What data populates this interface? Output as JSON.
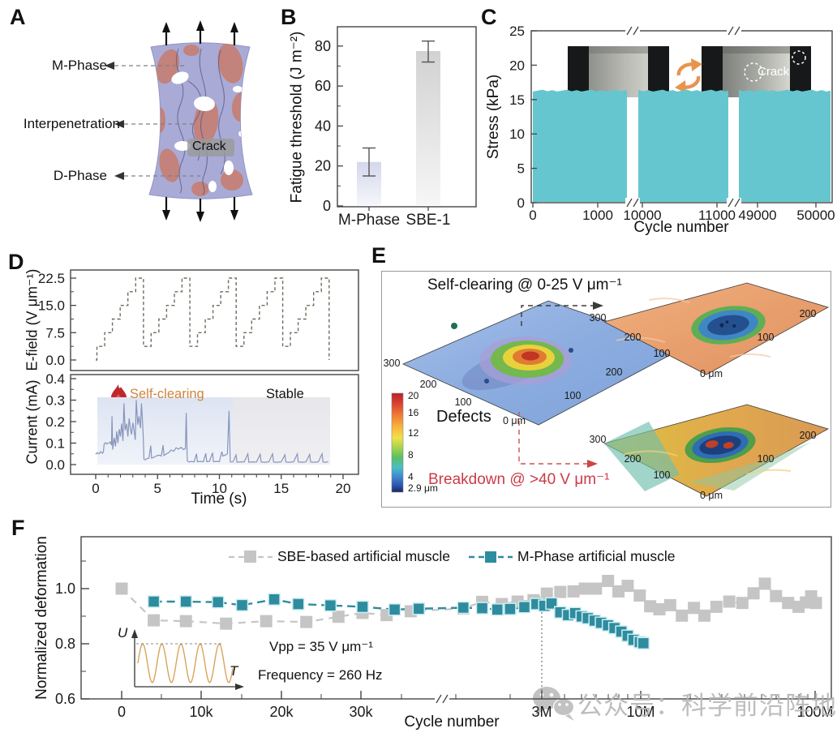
{
  "panels": {
    "a": "A",
    "b": "B",
    "c": "C",
    "d": "D",
    "e": "E",
    "f": "F"
  },
  "panel_a": {
    "m_phase": "M-Phase",
    "interpenetration": "Interpenetration",
    "d_phase": "D-Phase",
    "crack": "Crack",
    "colors": {
      "matrix": "#a9abd6",
      "domains": "#c58077"
    }
  },
  "panel_c": {
    "crack_label": "Crack"
  },
  "panel_d": {
    "self_clearing": "Self-clearing",
    "stable": "Stable"
  },
  "panel_e": {
    "title": "Self-clearing @ 0-25 V μm⁻¹",
    "defects_label": "Defects",
    "breakdown": "Breakdown @ >40 V μm⁻¹",
    "breakdown_color": "#cc3b47",
    "colorbar_ticks": [
      "20",
      "16",
      "12",
      "8",
      "4",
      "2.9 μm"
    ],
    "plots": [
      {
        "edge_labels": [
          "300",
          "200",
          "100",
          "0 μm",
          "100",
          "200"
        ]
      },
      {
        "edge_labels": [
          "300",
          "200",
          "100",
          "0 μm",
          "100",
          "200"
        ]
      },
      {
        "edge_labels": [
          "300",
          "200",
          "100",
          "0 μm",
          "100",
          "200"
        ]
      }
    ]
  },
  "panel_f": {
    "vpp": "Vpp = 35 V μm⁻¹",
    "frequency": "Frequency = 260 Hz",
    "inset_y": "U",
    "inset_x": "T"
  },
  "watermark": {
    "icon": "wechat-icon",
    "text": "公众号：科学前沿阵地",
    "color": "#b6b6b6"
  },
  "chart_data": [
    {
      "panel": "B",
      "type": "bar",
      "ylabel": "Fatigue threshold (J m⁻²)",
      "categories": [
        "M-Phase",
        "SBE-1"
      ],
      "values": [
        22,
        77.5
      ],
      "error_low": [
        7,
        5.5
      ],
      "error_high": [
        7,
        5
      ],
      "yticks": [
        0,
        20,
        40,
        60,
        80
      ],
      "ylim": [
        0,
        90
      ],
      "bar_colors": [
        "#dcdfef",
        "#d8d8d8"
      ]
    },
    {
      "panel": "C",
      "type": "area",
      "ylabel": "Stress (kPa)",
      "xlabel": "Cycle number",
      "yticks": [
        0,
        5,
        10,
        15,
        20,
        25
      ],
      "ylim": [
        0,
        25
      ],
      "plateau_stress_kPa": 16.3,
      "x_tick_labels": [
        "0",
        "1000",
        "10000",
        "11000",
        "49000",
        "50000"
      ],
      "n_axis_breaks": 2,
      "fill_color": "#65c6cf"
    },
    {
      "panel": "D-top",
      "type": "line",
      "ylabel": "E-field (V μm⁻¹)",
      "ytick_labels": [
        "0.0",
        "7.5",
        "15.0",
        "22.5"
      ],
      "ytick_values": [
        0,
        7.5,
        15,
        22.5
      ],
      "points": [
        [
          0,
          0
        ],
        [
          0.1,
          0
        ],
        [
          0.1,
          3.75
        ],
        [
          0.73,
          3.75
        ],
        [
          0.73,
          7.5
        ],
        [
          1.35,
          7.5
        ],
        [
          1.35,
          11.25
        ],
        [
          1.98,
          11.25
        ],
        [
          1.98,
          15
        ],
        [
          2.6,
          15
        ],
        [
          2.6,
          18.75
        ],
        [
          3.23,
          18.75
        ],
        [
          3.23,
          22.5
        ],
        [
          3.86,
          22.5
        ],
        [
          3.86,
          3.75
        ],
        [
          4.48,
          3.75
        ],
        [
          4.48,
          7.5
        ],
        [
          5.11,
          7.5
        ],
        [
          5.11,
          11.25
        ],
        [
          5.73,
          11.25
        ],
        [
          5.73,
          15
        ],
        [
          6.36,
          15
        ],
        [
          6.36,
          18.75
        ],
        [
          6.98,
          18.75
        ],
        [
          6.98,
          22.5
        ],
        [
          7.61,
          22.5
        ],
        [
          7.61,
          3.75
        ],
        [
          8.23,
          3.75
        ],
        [
          8.23,
          7.5
        ],
        [
          8.86,
          7.5
        ],
        [
          8.86,
          11.25
        ],
        [
          9.48,
          11.25
        ],
        [
          9.48,
          15
        ],
        [
          10.11,
          15
        ],
        [
          10.11,
          18.75
        ],
        [
          10.73,
          18.75
        ],
        [
          10.73,
          22.5
        ],
        [
          11.36,
          22.5
        ],
        [
          11.36,
          3.75
        ],
        [
          11.99,
          3.75
        ],
        [
          11.99,
          7.5
        ],
        [
          12.61,
          7.5
        ],
        [
          12.61,
          11.25
        ],
        [
          13.24,
          11.25
        ],
        [
          13.24,
          15
        ],
        [
          13.86,
          15
        ],
        [
          13.86,
          18.75
        ],
        [
          14.49,
          18.75
        ],
        [
          14.49,
          22.5
        ],
        [
          15.12,
          22.5
        ],
        [
          15.12,
          3.75
        ],
        [
          15.74,
          3.75
        ],
        [
          15.74,
          7.5
        ],
        [
          16.37,
          7.5
        ],
        [
          16.37,
          11.25
        ],
        [
          16.99,
          11.25
        ],
        [
          16.99,
          15
        ],
        [
          17.62,
          15
        ],
        [
          17.62,
          18.75
        ],
        [
          18.24,
          18.75
        ],
        [
          18.24,
          22.5
        ],
        [
          18.87,
          22.5
        ],
        [
          18.87,
          0
        ]
      ]
    },
    {
      "panel": "D-bottom",
      "type": "line",
      "ylabel": "Current (mA)",
      "xlabel": "Time (s)",
      "ytick_labels": [
        "0.0",
        "0.1",
        "0.2",
        "0.3",
        "0.4"
      ],
      "ytick_values": [
        0,
        0.1,
        0.2,
        0.3,
        0.4
      ],
      "xticks": [
        0,
        5,
        10,
        15,
        20
      ],
      "annotations": [
        "Self-clearing",
        "Stable"
      ],
      "points": [
        [
          0,
          0.048
        ],
        [
          0.1,
          0.055
        ],
        [
          0.25,
          0.05
        ],
        [
          0.4,
          0.06
        ],
        [
          0.55,
          0.052
        ],
        [
          0.62,
          0.06
        ],
        [
          0.68,
          0.095
        ],
        [
          0.8,
          0.102
        ],
        [
          0.92,
          0.096
        ],
        [
          1.05,
          0.1
        ],
        [
          1.18,
          0.105
        ],
        [
          1.28,
          0.09
        ],
        [
          1.32,
          0.225
        ],
        [
          1.38,
          0.07
        ],
        [
          1.5,
          0.125
        ],
        [
          1.6,
          0.085
        ],
        [
          1.7,
          0.155
        ],
        [
          1.8,
          0.1
        ],
        [
          1.9,
          0.165
        ],
        [
          2.0,
          0.13
        ],
        [
          2.1,
          0.19
        ],
        [
          2.2,
          0.11
        ],
        [
          2.28,
          0.285
        ],
        [
          2.38,
          0.16
        ],
        [
          2.5,
          0.19
        ],
        [
          2.6,
          0.13
        ],
        [
          2.7,
          0.215
        ],
        [
          2.8,
          0.17
        ],
        [
          2.9,
          0.14
        ],
        [
          3.0,
          0.195
        ],
        [
          3.1,
          0.16
        ],
        [
          3.2,
          0.115
        ],
        [
          3.28,
          0.3
        ],
        [
          3.4,
          0.185
        ],
        [
          3.5,
          0.225
        ],
        [
          3.62,
          0.17
        ],
        [
          3.7,
          0.285
        ],
        [
          3.78,
          0.21
        ],
        [
          3.84,
          0.13
        ],
        [
          3.9,
          0.025
        ],
        [
          4.0,
          0.022
        ],
        [
          4.15,
          0.028
        ],
        [
          4.3,
          0.03
        ],
        [
          4.45,
          0.088
        ],
        [
          4.52,
          0.03
        ],
        [
          4.7,
          0.034
        ],
        [
          4.9,
          0.04
        ],
        [
          5.1,
          0.044
        ],
        [
          5.3,
          0.04
        ],
        [
          5.45,
          0.09
        ],
        [
          5.52,
          0.042
        ],
        [
          5.7,
          0.05
        ],
        [
          5.9,
          0.055
        ],
        [
          6.1,
          0.068
        ],
        [
          6.3,
          0.062
        ],
        [
          6.5,
          0.078
        ],
        [
          6.7,
          0.072
        ],
        [
          6.9,
          0.08
        ],
        [
          7.1,
          0.07
        ],
        [
          7.25,
          0.075
        ],
        [
          7.32,
          0.24
        ],
        [
          7.4,
          0.018
        ],
        [
          7.55,
          0.012
        ],
        [
          7.75,
          0.015
        ],
        [
          7.95,
          0.012
        ],
        [
          8.15,
          0.05
        ],
        [
          8.22,
          0.013
        ],
        [
          8.45,
          0.015
        ],
        [
          8.7,
          0.013
        ],
        [
          8.9,
          0.052
        ],
        [
          8.98,
          0.014
        ],
        [
          9.2,
          0.015
        ],
        [
          9.45,
          0.055
        ],
        [
          9.52,
          0.013
        ],
        [
          9.75,
          0.015
        ],
        [
          10.0,
          0.014
        ],
        [
          10.2,
          0.06
        ],
        [
          10.28,
          0.04
        ],
        [
          10.5,
          0.045
        ],
        [
          10.65,
          0.05
        ],
        [
          10.78,
          0.25
        ],
        [
          10.88,
          0.012
        ],
        [
          11.1,
          0.013
        ],
        [
          11.35,
          0.045
        ],
        [
          11.42,
          0.011
        ],
        [
          11.7,
          0.013
        ],
        [
          12.0,
          0.012
        ],
        [
          12.3,
          0.05
        ],
        [
          12.38,
          0.011
        ],
        [
          12.7,
          0.013
        ],
        [
          13.0,
          0.012
        ],
        [
          13.3,
          0.048
        ],
        [
          13.38,
          0.012
        ],
        [
          13.7,
          0.011
        ],
        [
          14.0,
          0.013
        ],
        [
          14.3,
          0.05
        ],
        [
          14.38,
          0.012
        ],
        [
          14.7,
          0.011
        ],
        [
          15.0,
          0.013
        ],
        [
          15.3,
          0.046
        ],
        [
          15.38,
          0.012
        ],
        [
          15.7,
          0.011
        ],
        [
          16.0,
          0.013
        ],
        [
          16.3,
          0.05
        ],
        [
          16.38,
          0.012
        ],
        [
          16.7,
          0.011
        ],
        [
          17.0,
          0.013
        ],
        [
          17.3,
          0.047
        ],
        [
          17.38,
          0.012
        ],
        [
          17.7,
          0.011
        ],
        [
          18.0,
          0.013
        ],
        [
          18.3,
          0.05
        ],
        [
          18.38,
          0.012
        ],
        [
          18.6,
          0.011
        ],
        [
          18.8,
          0.014
        ]
      ]
    },
    {
      "panel": "F",
      "type": "scatter",
      "ylabel": "Normalized deformation",
      "xlabel": "Cycle number",
      "ytick_labels": [
        "0.6",
        "0.8",
        "1.0"
      ],
      "ytick_values": [
        0.6,
        0.8,
        1.0
      ],
      "xtick_labels": [
        "0",
        "10k",
        "20k",
        "30k",
        "3M",
        "10M",
        "100M"
      ],
      "series": [
        {
          "name": "SBE-based artificial muscle",
          "color": "#c5c5c5",
          "points": [
            [
              0,
              1.0
            ],
            [
              4000,
              0.885
            ],
            [
              8000,
              0.882
            ],
            [
              13000,
              0.873
            ],
            [
              18000,
              0.882
            ],
            [
              23000,
              0.879
            ],
            [
              27000,
              0.898
            ],
            [
              30000,
              0.912
            ],
            [
              33000,
              0.904
            ],
            [
              36000,
              0.918
            ],
            [
              1100000,
              0.928
            ],
            [
              1400000,
              0.952
            ],
            [
              1800000,
              0.944
            ],
            [
              2200000,
              0.953
            ],
            [
              2700000,
              0.958
            ],
            [
              3200000,
              0.982
            ],
            [
              3800000,
              0.988
            ],
            [
              4500000,
              0.99
            ],
            [
              5200000,
              1.0
            ],
            [
              6000000,
              1.0
            ],
            [
              7000000,
              1.028
            ],
            [
              8000000,
              0.99
            ],
            [
              9000000,
              1.01
            ],
            [
              10500000,
              0.975
            ],
            [
              12000000,
              0.936
            ],
            [
              13500000,
              0.925
            ],
            [
              15500000,
              0.94
            ],
            [
              18000000,
              0.902
            ],
            [
              21000000,
              0.93
            ],
            [
              24000000,
              0.902
            ],
            [
              28000000,
              0.934
            ],
            [
              33000000,
              0.953
            ],
            [
              39000000,
              0.948
            ],
            [
              45000000,
              0.983
            ],
            [
              52000000,
              1.018
            ],
            [
              60000000,
              0.973
            ],
            [
              70000000,
              0.948
            ],
            [
              80000000,
              0.934
            ],
            [
              88000000,
              0.95
            ],
            [
              94000000,
              0.972
            ],
            [
              100000000,
              0.948
            ]
          ]
        },
        {
          "name": "M-Phase artificial muscle",
          "color": "#2e8c9e",
          "points": [
            [
              4000,
              0.953
            ],
            [
              8000,
              0.953
            ],
            [
              12000,
              0.951
            ],
            [
              15000,
              0.94
            ],
            [
              19000,
              0.961
            ],
            [
              22000,
              0.944
            ],
            [
              26000,
              0.939
            ],
            [
              30000,
              0.934
            ],
            [
              34000,
              0.924
            ],
            [
              37000,
              0.927
            ],
            [
              1100000,
              0.931
            ],
            [
              1400000,
              0.929
            ],
            [
              1700000,
              0.924
            ],
            [
              2000000,
              0.926
            ],
            [
              2400000,
              0.933
            ],
            [
              2800000,
              0.944
            ],
            [
              3100000,
              0.938
            ],
            [
              3400000,
              0.946
            ],
            [
              3800000,
              0.914
            ],
            [
              4200000,
              0.904
            ],
            [
              4600000,
              0.911
            ],
            [
              5000000,
              0.899
            ],
            [
              5400000,
              0.893
            ],
            [
              5900000,
              0.884
            ],
            [
              6400000,
              0.876
            ],
            [
              7000000,
              0.867
            ],
            [
              7600000,
              0.857
            ],
            [
              8300000,
              0.844
            ],
            [
              9000000,
              0.829
            ],
            [
              9700000,
              0.814
            ],
            [
              10500000,
              0.806
            ],
            [
              11000000,
              0.802
            ]
          ]
        }
      ],
      "marker_line_at": "3M"
    }
  ]
}
